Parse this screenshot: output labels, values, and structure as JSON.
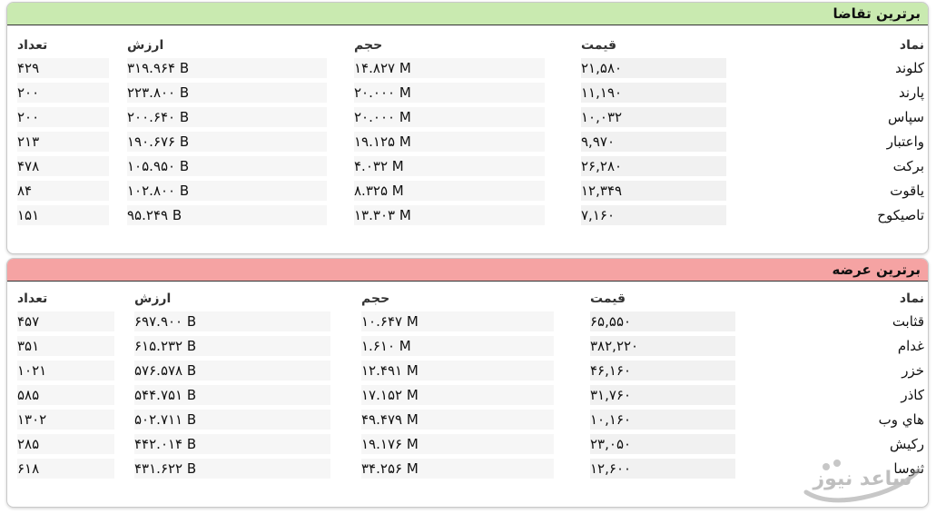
{
  "demand": {
    "title": "برترین تقاضا",
    "headers": {
      "name": "نماد",
      "price": "قیمت",
      "volume": "حجم",
      "value": "ارزش",
      "count": "تعداد"
    },
    "rows": [
      {
        "name": "کلوند",
        "price": "۲۱,۵۸۰",
        "volume": "۱۴.۸۲۷ M",
        "value": "۳۱۹.۹۶۴ B",
        "count": "۴۲۹"
      },
      {
        "name": "پارند",
        "price": "۱۱,۱۹۰",
        "volume": "۲۰.۰۰۰ M",
        "value": "۲۲۳.۸۰۰ B",
        "count": "۲۰۰"
      },
      {
        "name": "سپاس",
        "price": "۱۰,۰۳۲",
        "volume": "۲۰.۰۰۰ M",
        "value": "۲۰۰.۶۴۰ B",
        "count": "۲۰۰"
      },
      {
        "name": "واعتبار",
        "price": "۹,۹۷۰",
        "volume": "۱۹.۱۲۵ M",
        "value": "۱۹۰.۶۷۶ B",
        "count": "۲۱۳"
      },
      {
        "name": "برکت",
        "price": "۲۶,۲۸۰",
        "volume": "۴.۰۳۲ M",
        "value": "۱۰۵.۹۵۰ B",
        "count": "۴۷۸"
      },
      {
        "name": "یاقوت",
        "price": "۱۲,۳۴۹",
        "volume": "۸.۳۲۵ M",
        "value": "۱۰۲.۸۰۰ B",
        "count": "۸۴"
      },
      {
        "name": "تاصیکوح",
        "price": "۷,۱۶۰",
        "volume": "۱۳.۳۰۳ M",
        "value": "۹۵.۲۴۹ B",
        "count": "۱۵۱"
      }
    ]
  },
  "supply": {
    "title": "برترین عرضه",
    "headers": {
      "name": "نماد",
      "price": "قیمت",
      "volume": "حجم",
      "value": "ارزش",
      "count": "تعداد"
    },
    "rows": [
      {
        "name": "قثابت",
        "price": "۶۵,۵۵۰",
        "volume": "۱۰.۶۴۷ M",
        "value": "۶۹۷.۹۰۰ B",
        "count": "۴۵۷"
      },
      {
        "name": "غدام",
        "price": "۳۸۲,۲۲۰",
        "volume": "۱.۶۱۰ M",
        "value": "۶۱۵.۲۳۲ B",
        "count": "۳۵۱"
      },
      {
        "name": "خزر",
        "price": "۴۶,۱۶۰",
        "volume": "۱۲.۴۹۱ M",
        "value": "۵۷۶.۵۷۸ B",
        "count": "۱۰۲۱"
      },
      {
        "name": "کاذر",
        "price": "۳۱,۷۶۰",
        "volume": "۱۷.۱۵۲ M",
        "value": "۵۴۴.۷۵۱ B",
        "count": "۵۸۵"
      },
      {
        "name": "هاي وب",
        "price": "۱۰,۱۶۰",
        "volume": "۴۹.۴۷۹ M",
        "value": "۵۰۲.۷۱۱ B",
        "count": "۱۳۰۲"
      },
      {
        "name": "رکیش",
        "price": "۲۳,۰۵۰",
        "volume": "۱۹.۱۷۶ M",
        "value": "۴۴۲.۰۱۴ B",
        "count": "۲۸۵"
      },
      {
        "name": "ثنوسا",
        "price": "۱۲,۶۰۰",
        "volume": "۳۴.۲۵۶ M",
        "value": "۴۳۱.۶۲۲ B",
        "count": "۶۱۸"
      }
    ]
  },
  "watermark": {
    "text": "ساعد نیوز"
  }
}
